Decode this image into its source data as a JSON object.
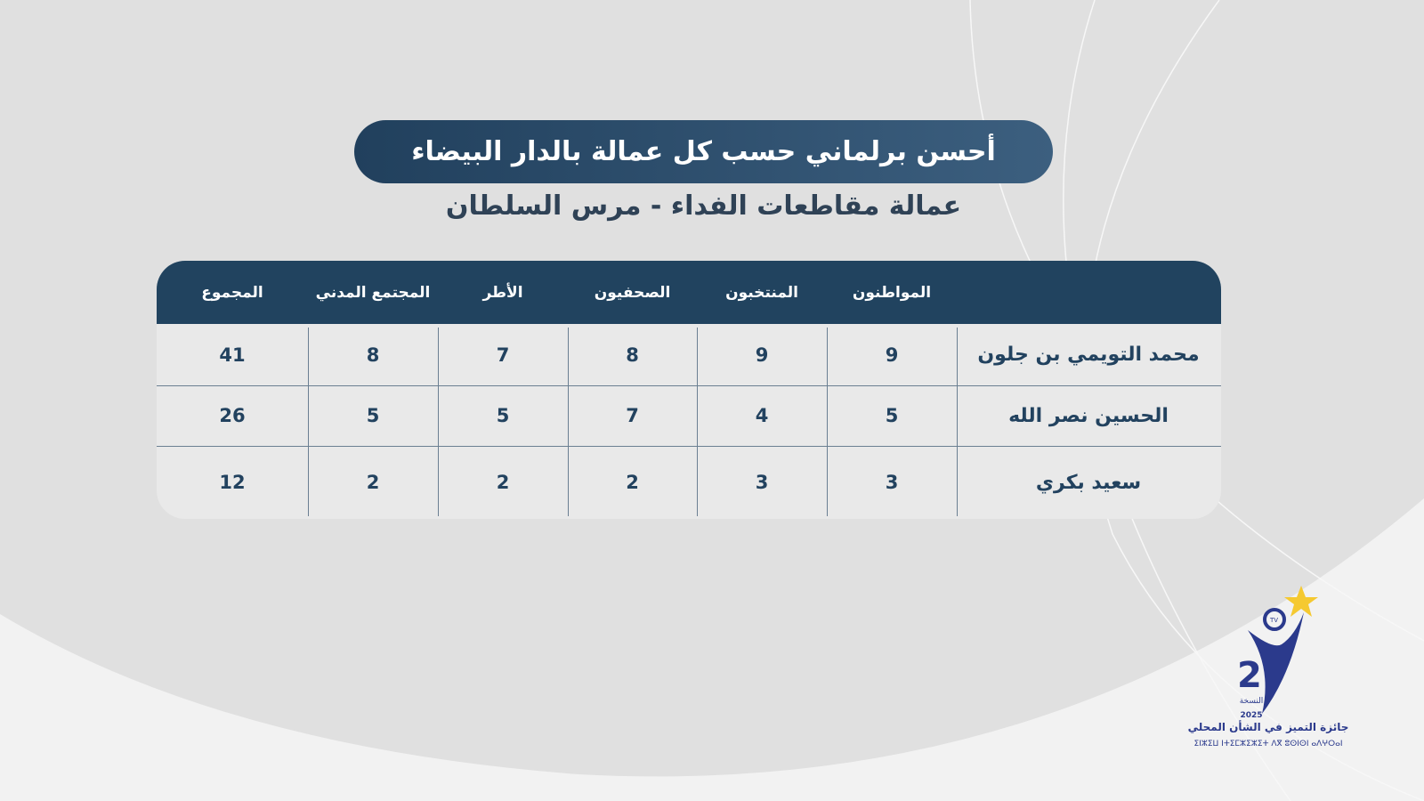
{
  "title": "أحسن برلماني حسب كل عمالة بالدار البيضاء",
  "subtitle": "عمالة مقاطعات الفداء - مرس السلطان",
  "table": {
    "headers": [
      "",
      "المواطنون",
      "المنتخبون",
      "الصحفيون",
      "الأطر",
      "المجتمع المدني",
      "المجموع"
    ],
    "rows": [
      [
        "محمد التويمي بن جلون",
        "9",
        "9",
        "8",
        "7",
        "8",
        "41"
      ],
      [
        "الحسين نصر الله",
        "5",
        "4",
        "7",
        "5",
        "5",
        "26"
      ],
      [
        "سعيد بكري",
        "3",
        "3",
        "2",
        "2",
        "2",
        "12"
      ]
    ]
  },
  "logo": {
    "edition_number": "2",
    "edition_label": "النسخة",
    "year": "2025",
    "tv": "TV",
    "award_name": "جائزة التميز في الشأن المحلي",
    "award_name_tifinagh": "ⵉⵏⵣⵉⵡ ⵏⵜⵉⵎⵣⵉⵣⵉⵜ ⴷⴳ ⵓⵙⵏⵙⵏ ⴰⴷⵖⵔⴰⵏ",
    "colors": {
      "primary": "#2b3a8c",
      "star": "#f5c930"
    }
  },
  "colors": {
    "header": "#21435f",
    "text": "#22425f"
  }
}
